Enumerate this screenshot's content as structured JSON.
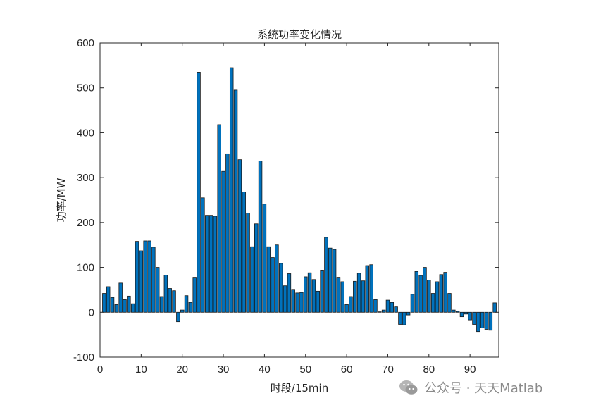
{
  "chart_data": {
    "type": "bar",
    "title": "系统功率变化情况",
    "xlabel": "时段/15min",
    "ylabel": "功率/MW",
    "xlim": [
      0,
      97
    ],
    "ylim": [
      -100,
      600
    ],
    "xticks": [
      0,
      10,
      20,
      30,
      40,
      50,
      60,
      70,
      80,
      90
    ],
    "yticks": [
      -100,
      0,
      100,
      200,
      300,
      400,
      500,
      600
    ],
    "grid": false,
    "bar_color": "#0072BD",
    "edge_color": "#1a1a1a",
    "series": [
      {
        "x": [
          1,
          2,
          3,
          4,
          5,
          6,
          7,
          8,
          9,
          10,
          11,
          12,
          13,
          14,
          15,
          16,
          17,
          18,
          19,
          20,
          21,
          22,
          23,
          24,
          25,
          26,
          27,
          28,
          29,
          30,
          31,
          32,
          33,
          34,
          35,
          36,
          37,
          38,
          39,
          40,
          41,
          42,
          43,
          44,
          45,
          46,
          47,
          48,
          49,
          50,
          51,
          52,
          53,
          54,
          55,
          56,
          57,
          58,
          59,
          60,
          61,
          62,
          63,
          64,
          65,
          66,
          67,
          68,
          69,
          70,
          71,
          72,
          73,
          74,
          75,
          76,
          77,
          78,
          79,
          80,
          81,
          82,
          83,
          84,
          85,
          86,
          87,
          88,
          89,
          90,
          91,
          92,
          93,
          94,
          95,
          96
        ],
        "values": [
          42,
          57,
          33,
          17,
          65,
          28,
          36,
          19,
          158,
          137,
          159,
          159,
          145,
          100,
          35,
          83,
          53,
          48,
          -21,
          5,
          37,
          22,
          78,
          535,
          255,
          216,
          216,
          214,
          418,
          314,
          353,
          545,
          495,
          340,
          268,
          221,
          146,
          197,
          337,
          241,
          146,
          122,
          150,
          109,
          59,
          86,
          51,
          43,
          44,
          79,
          88,
          73,
          47,
          94,
          167,
          143,
          140,
          78,
          68,
          17,
          35,
          69,
          87,
          70,
          104,
          106,
          28,
          1,
          5,
          27,
          22,
          12,
          -27,
          -28,
          -6,
          40,
          91,
          82,
          100,
          72,
          42,
          68,
          84,
          89,
          42,
          5,
          2,
          -10,
          -4,
          -17,
          -27,
          -43,
          -35,
          -38,
          -40,
          21
        ]
      }
    ]
  },
  "watermark": {
    "text": "公众号 · 天天Matlab",
    "icon": "wechat-icon"
  }
}
